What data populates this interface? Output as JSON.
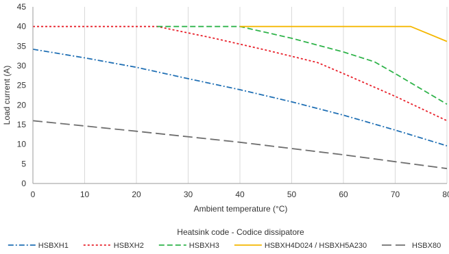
{
  "chart_data": {
    "type": "line",
    "title": "",
    "xlabel": "Ambient temperature (°C)",
    "ylabel": "Load current (A)",
    "xlim": [
      0,
      80
    ],
    "ylim": [
      0,
      45
    ],
    "xticks": [
      0,
      10,
      20,
      30,
      40,
      50,
      60,
      70,
      80
    ],
    "yticks": [
      0,
      5,
      10,
      15,
      20,
      25,
      30,
      35,
      40,
      45
    ],
    "grid": "vertical",
    "legend": {
      "title": "Heatsink code - Codice dissipatore",
      "placement": "bottom"
    },
    "series": [
      {
        "name": "HSBXH1",
        "color": "#1f6fb4",
        "dash": "dash-dot",
        "points": [
          [
            0,
            34.2
          ],
          [
            10,
            32.0
          ],
          [
            20,
            29.6
          ],
          [
            30,
            26.7
          ],
          [
            40,
            23.9
          ],
          [
            50,
            20.8
          ],
          [
            60,
            17.4
          ],
          [
            70,
            13.6
          ],
          [
            80,
            9.6
          ]
        ]
      },
      {
        "name": "HSBXH2",
        "color": "#e8202a",
        "dash": "dot",
        "points": [
          [
            0,
            40
          ],
          [
            24,
            40
          ],
          [
            35,
            37.0
          ],
          [
            45,
            34.0
          ],
          [
            55,
            30.8
          ],
          [
            60,
            28.0
          ],
          [
            70,
            22.2
          ],
          [
            80,
            16.0
          ]
        ]
      },
      {
        "name": "HSBXH3",
        "color": "#2fb34a",
        "dash": "dash",
        "points": [
          [
            24,
            40
          ],
          [
            40,
            40
          ],
          [
            50,
            37.0
          ],
          [
            60,
            33.5
          ],
          [
            66,
            31.0
          ],
          [
            70,
            28.0
          ],
          [
            80,
            20.2
          ]
        ]
      },
      {
        "name": "HSBXH4D024 / HSBXH5A230",
        "color": "#f5b700",
        "dash": "solid",
        "points": [
          [
            40,
            40
          ],
          [
            73,
            40
          ],
          [
            80,
            36.2
          ]
        ]
      },
      {
        "name": "HSBX80",
        "color": "#6e6e6e",
        "dash": "long-dash",
        "points": [
          [
            0,
            16.0
          ],
          [
            20,
            13.3
          ],
          [
            40,
            10.5
          ],
          [
            60,
            7.3
          ],
          [
            80,
            3.8
          ]
        ]
      }
    ]
  }
}
